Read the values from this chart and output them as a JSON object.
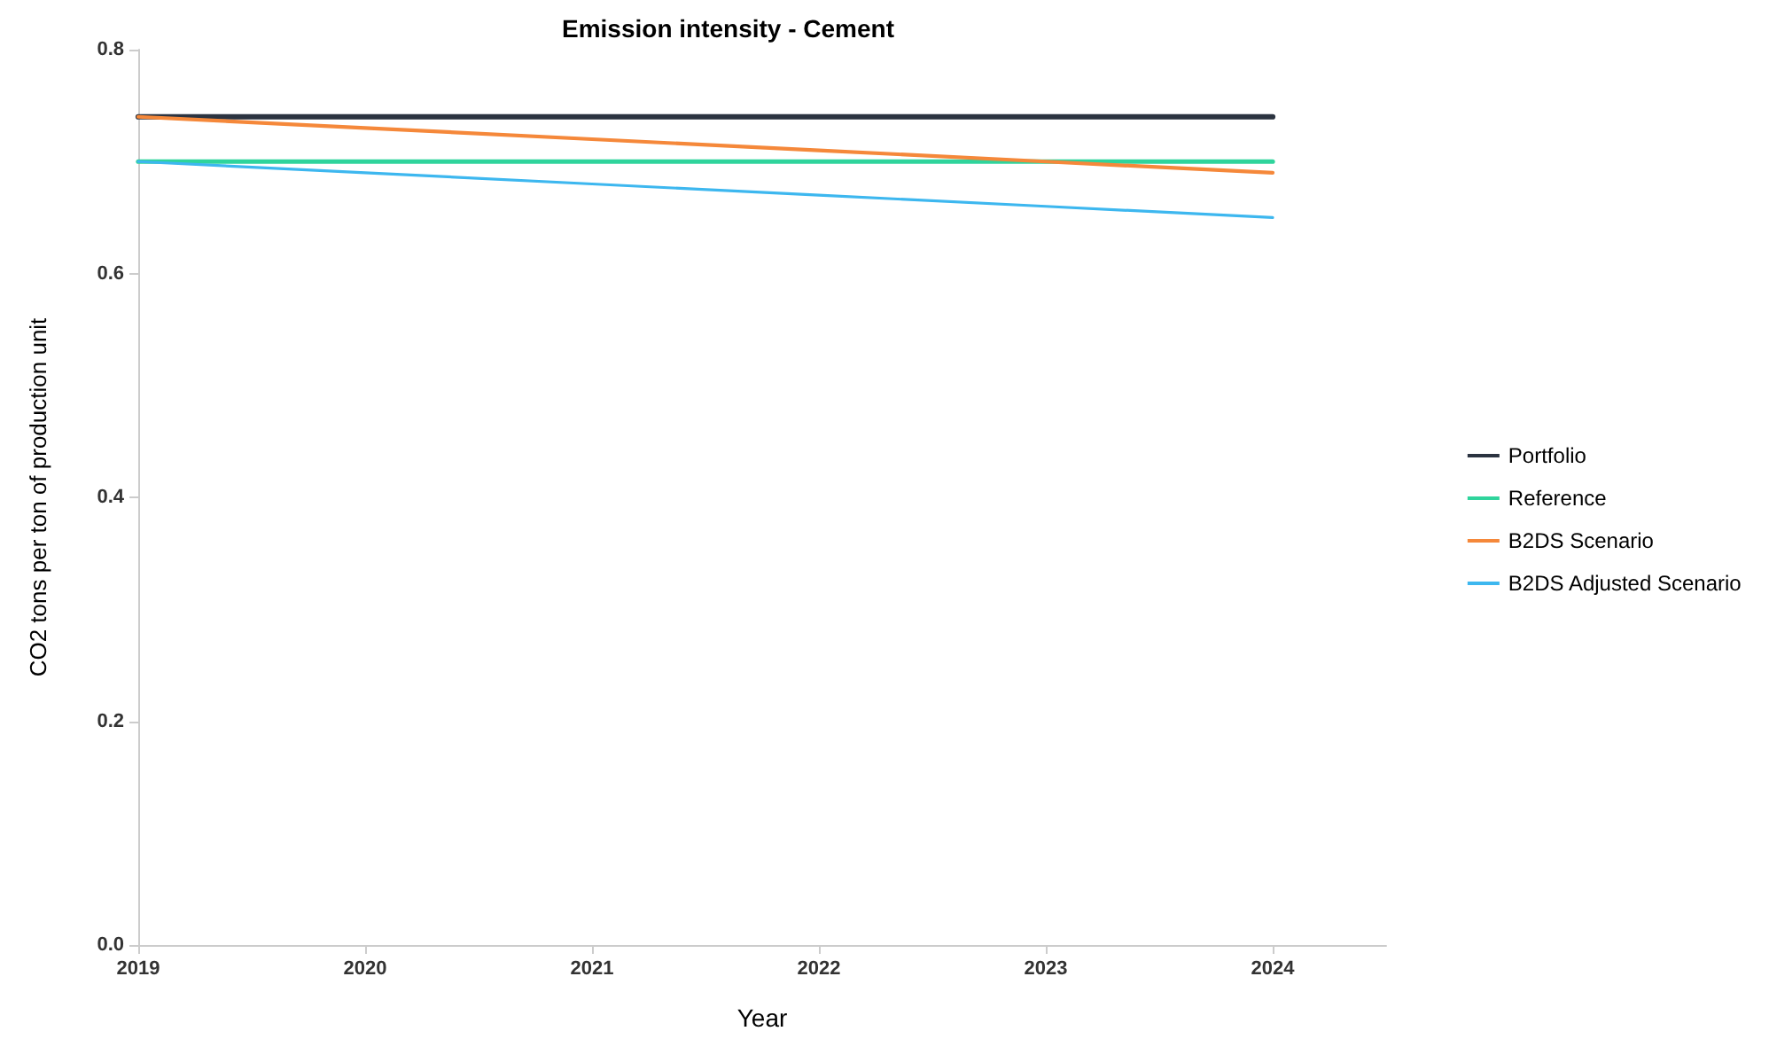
{
  "chart_data": {
    "type": "line",
    "title": "Emission intensity - Cement",
    "xlabel": "Year",
    "ylabel": "CO2 tons per ton of production unit",
    "x": [
      2019,
      2020,
      2021,
      2022,
      2023,
      2024
    ],
    "series": [
      {
        "name": "Portfolio",
        "color": "#2b3340",
        "values": [
          0.74,
          0.74,
          0.74,
          0.74,
          0.74,
          0.74
        ]
      },
      {
        "name": "Reference",
        "color": "#2fd49c",
        "values": [
          0.7,
          0.7,
          0.7,
          0.7,
          0.7,
          0.7
        ]
      },
      {
        "name": "B2DS Scenario",
        "color": "#f5883a",
        "values": [
          0.74,
          0.73,
          0.72,
          0.71,
          0.7,
          0.69
        ]
      },
      {
        "name": "B2DS Adjusted Scenario",
        "color": "#3db7ef",
        "values": [
          0.7,
          0.69,
          0.68,
          0.67,
          0.66,
          0.65
        ]
      }
    ],
    "xlim": [
      2019,
      2024.5
    ],
    "xticks": [
      2019,
      2020,
      2021,
      2022,
      2023,
      2024
    ],
    "ylim": [
      0,
      0.8
    ],
    "yticks": [
      {
        "value": 0,
        "label": "0.0"
      },
      0.2,
      0.4,
      0.6,
      0.8
    ],
    "grid": false,
    "legend": "right",
    "marker": "none",
    "line_style": "solid"
  }
}
